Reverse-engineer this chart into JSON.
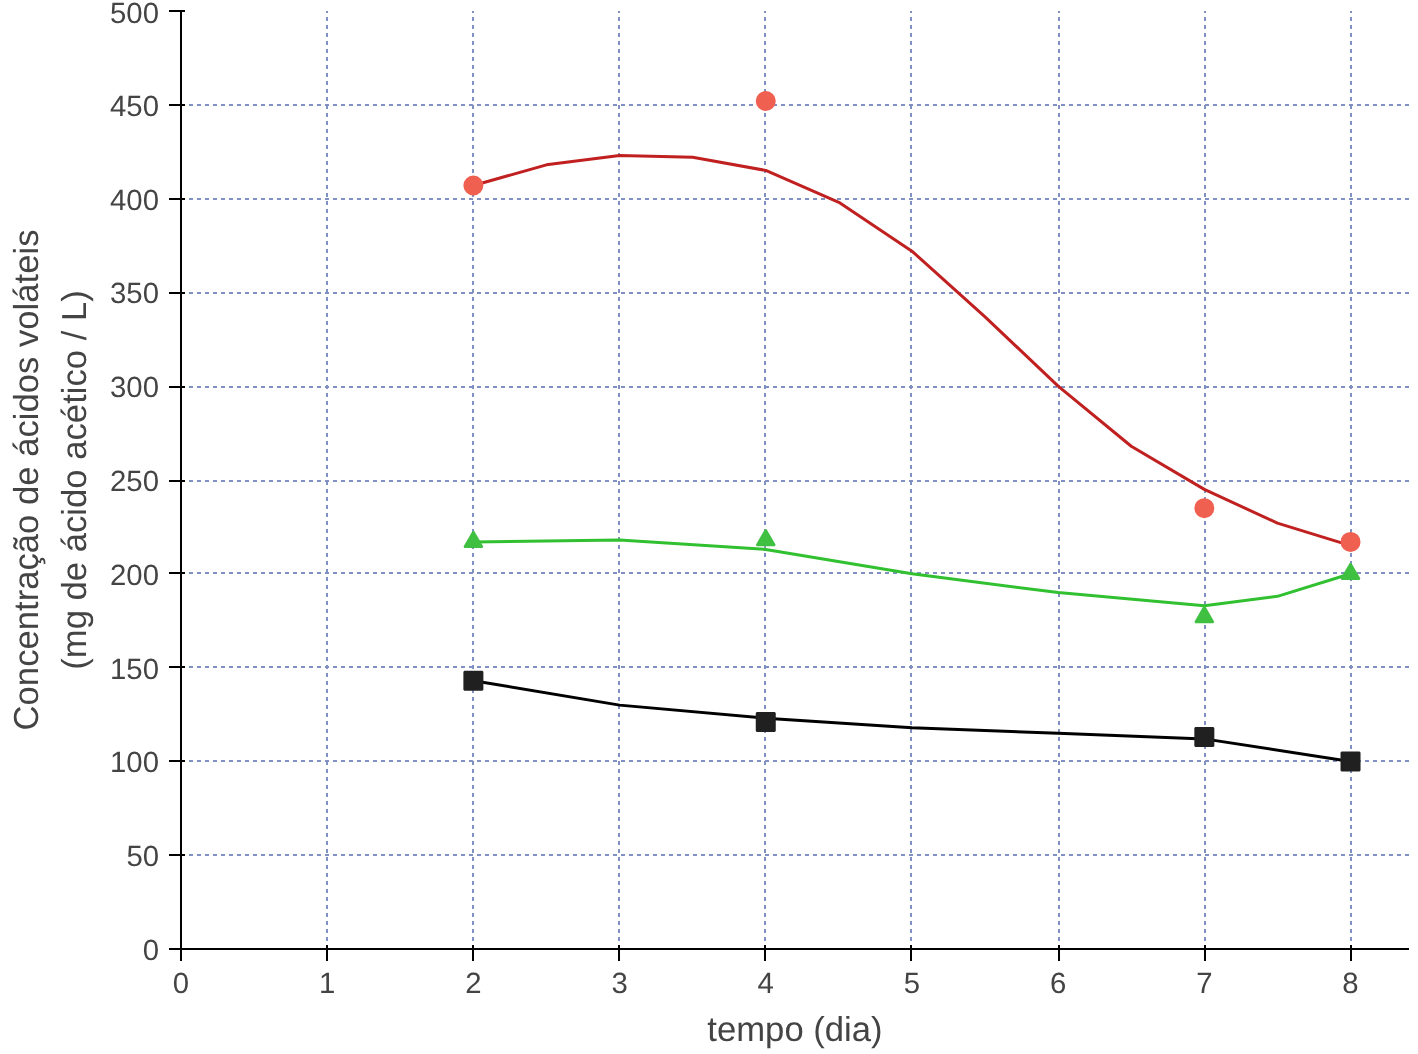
{
  "chart_data": {
    "type": "scatter",
    "xlabel": "tempo (dia)",
    "ylabel": "Concentração de ácidos voláteis\n(mg de ácido acético / L)",
    "xlim": [
      0,
      8.4
    ],
    "ylim": [
      0,
      500
    ],
    "xticks": [
      0,
      1,
      2,
      3,
      4,
      5,
      6,
      7,
      8
    ],
    "yticks": [
      0,
      50,
      100,
      150,
      200,
      250,
      300,
      350,
      400,
      450,
      500
    ],
    "grid": true,
    "series": [
      {
        "type": "line",
        "color": "#c02020",
        "line_style": "solid",
        "x": [
          2,
          2.5,
          3,
          3.5,
          4,
          4.5,
          5,
          5.5,
          6,
          6.5,
          7,
          7.5,
          8
        ],
        "values": [
          407,
          418,
          423,
          422,
          415,
          398,
          372,
          337,
          300,
          268,
          245,
          227,
          215
        ]
      },
      {
        "type": "line",
        "color": "#30c030",
        "line_style": "solid",
        "x": [
          2,
          3,
          4,
          5,
          6,
          7,
          7.5,
          8
        ],
        "values": [
          217,
          218,
          213,
          200,
          190,
          183,
          188,
          200
        ]
      },
      {
        "type": "line",
        "color": "#000000",
        "line_style": "solid",
        "x": [
          2,
          3,
          4,
          5,
          6,
          7,
          8
        ],
        "values": [
          143,
          130,
          123,
          118,
          115,
          112,
          100
        ]
      },
      {
        "color": "#f06050",
        "marker": "circle",
        "x": [
          2,
          4,
          7,
          8
        ],
        "values": [
          407,
          452,
          235,
          217
        ]
      },
      {
        "color": "#40c040",
        "marker": "triangle",
        "x": [
          2,
          4,
          7,
          8
        ],
        "values": [
          217,
          218,
          177,
          200
        ]
      },
      {
        "color": "#202020",
        "marker": "square",
        "x": [
          2,
          4,
          7,
          8
        ],
        "values": [
          143,
          121,
          113,
          100
        ]
      }
    ]
  }
}
